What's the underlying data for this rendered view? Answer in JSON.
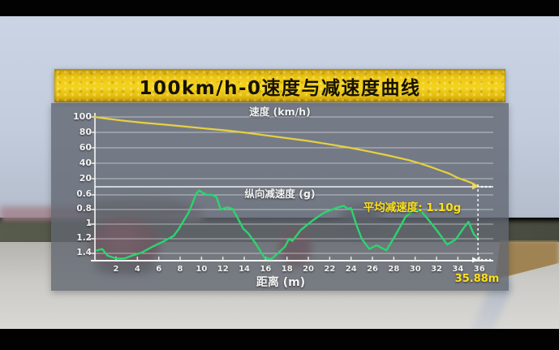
{
  "scene": {
    "title_banner": "100km/h-0速度与减速度曲线"
  },
  "chart": {
    "speed_axis_title": "速度 (km/h)",
    "decel_axis_title": "纵向减速度 (g)",
    "x_axis_title": "距离 (m)",
    "avg_decel_annotation": "平均减速度: 1.10g",
    "stop_distance_label": "35.88m",
    "colors": {
      "speed_line": "#e6d140",
      "decel_line": "#2cd46f",
      "annotation_yellow": "#ffe11a",
      "banner_yellow": "#efca16",
      "grid_white": "#ffffff"
    }
  },
  "chart_data": {
    "type": "line",
    "title": "100km/h-0速度与减速度曲线",
    "xlabel": "距离 (m)",
    "xlim": [
      0,
      36
    ],
    "x_ticks": [
      2,
      4,
      6,
      8,
      10,
      12,
      14,
      16,
      18,
      20,
      22,
      24,
      26,
      28,
      30,
      32,
      34,
      36
    ],
    "grid": true,
    "series": [
      {
        "name": "速度 (km/h)",
        "color": "#e6d140",
        "ylim": [
          0,
          100
        ],
        "yticks": [
          100,
          80,
          60,
          40,
          20
        ],
        "x": [
          0,
          1,
          2.8,
          4.5,
          6.6,
          8.5,
          10.4,
          12.3,
          14.2,
          16.1,
          18,
          19.9,
          21.8,
          23.7,
          25.6,
          27.5,
          29.4,
          30.4,
          31.4,
          32.3,
          33.2,
          34,
          34.7,
          35.2,
          35.6,
          35.88
        ],
        "values": [
          100,
          98,
          95,
          92.5,
          90,
          87.5,
          85,
          82.5,
          79.5,
          76,
          72.5,
          69,
          65,
          60.5,
          55.5,
          50,
          44,
          40,
          35.5,
          31,
          26.5,
          21,
          15.5,
          10.5,
          5.5,
          0
        ]
      },
      {
        "name": "纵向减速度 (g)",
        "color": "#2cd46f",
        "ylim": [
          0.5,
          1.5
        ],
        "inverted": true,
        "yticks": [
          "0.6",
          "0.8",
          "1",
          "1.2",
          "1.4"
        ],
        "x": [
          0.2,
          0.7,
          1.2,
          2,
          2.8,
          3.5,
          4.4,
          5.4,
          6.4,
          6.9,
          7.4,
          7.9,
          8.3,
          8.8,
          9.2,
          9.5,
          9.8,
          10.1,
          10.5,
          11,
          11.4,
          11.8,
          12.4,
          12.9,
          13.4,
          13.9,
          14.4,
          15,
          15.9,
          16.5,
          17,
          17.8,
          18.2,
          18.5,
          19.3,
          20.4,
          21.5,
          22.8,
          23.3,
          23.7,
          24,
          24.5,
          25,
          25.7,
          26.4,
          27.3,
          28.2,
          29.1,
          30,
          30.6,
          31.3,
          32.1,
          33,
          33.8,
          34.6,
          35,
          35.5,
          35.88
        ],
        "values": [
          1.36,
          1.34,
          1.43,
          1.47,
          1.47,
          1.43,
          1.39,
          1.31,
          1.24,
          1.2,
          1.16,
          1.06,
          0.96,
          0.84,
          0.7,
          0.58,
          0.54,
          0.57,
          0.6,
          0.6,
          0.63,
          0.8,
          0.77,
          0.79,
          0.92,
          1.06,
          1.13,
          1.25,
          1.46,
          1.48,
          1.42,
          1.31,
          1.2,
          1.23,
          1.08,
          0.95,
          0.84,
          0.77,
          0.75,
          0.79,
          0.78,
          1.01,
          1.2,
          1.34,
          1.29,
          1.36,
          1.14,
          0.9,
          0.8,
          0.83,
          0.95,
          1.1,
          1.28,
          1.21,
          1.04,
          0.97,
          1.14,
          1.19
        ]
      }
    ],
    "annotations": [
      {
        "text": "平均减速度: 1.10g"
      },
      {
        "text": "35.88m",
        "x": 35.88,
        "marker": "dashed-vertical-line"
      }
    ]
  }
}
